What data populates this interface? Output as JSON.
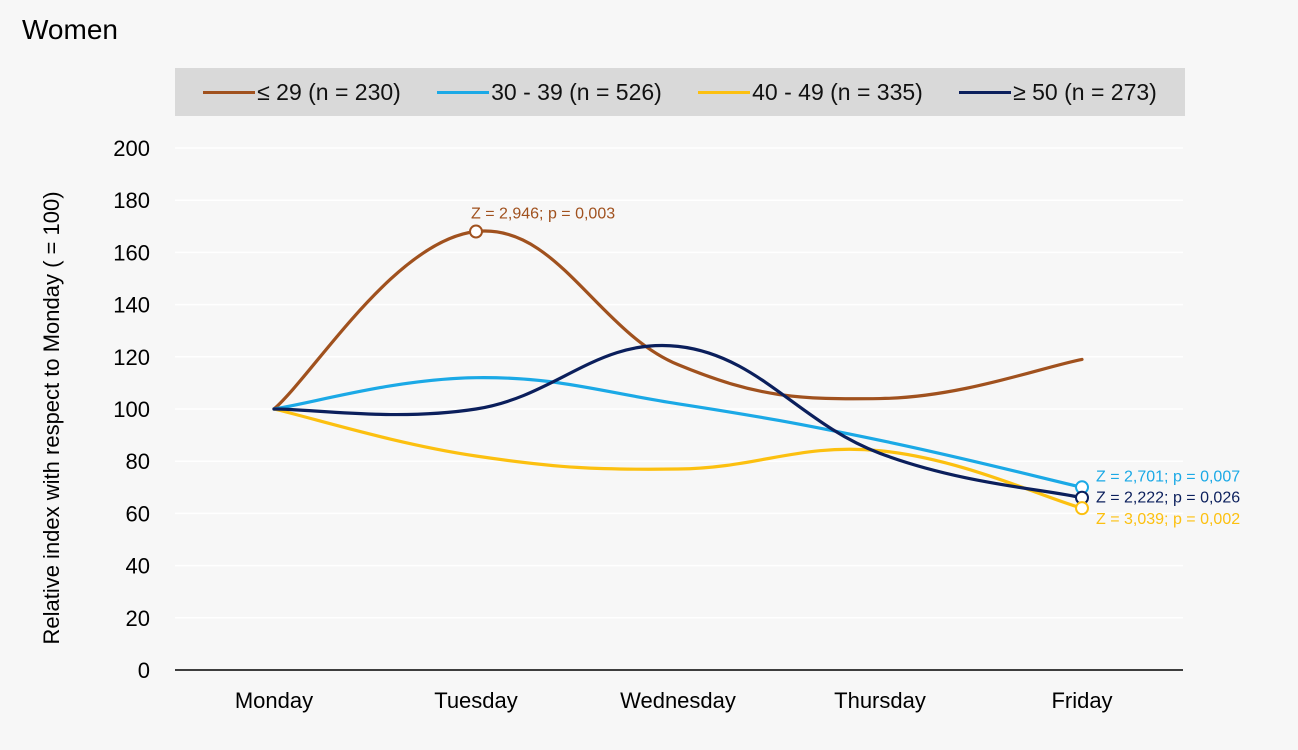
{
  "chart_data": {
    "type": "line",
    "title": "Women",
    "ylabel": "Relative index with respect to Monday ( = 100)",
    "xlabel": "",
    "categories": [
      "Monday",
      "Tuesday",
      "Wednesday",
      "Thursday",
      "Friday"
    ],
    "ylim": [
      0,
      200
    ],
    "yticks": [
      0,
      20,
      40,
      60,
      80,
      100,
      120,
      140,
      160,
      180,
      200
    ],
    "grid": true,
    "legend_position": "top",
    "series": [
      {
        "name": "≤ 29 (n = 230)",
        "color": "#a0511e",
        "values": [
          100,
          168,
          117,
          104,
          119
        ]
      },
      {
        "name": "30 - 39 (n = 526)",
        "color": "#1ba9e6",
        "values": [
          100,
          112,
          102,
          88,
          70
        ]
      },
      {
        "name": "40 - 49 (n = 335)",
        "color": "#fcc010",
        "values": [
          100,
          82,
          77,
          84,
          62
        ]
      },
      {
        "name": "≥ 50 (n = 273)",
        "color": "#0b1f5c",
        "values": [
          100,
          100,
          124,
          83,
          66
        ]
      }
    ],
    "annotations": [
      {
        "text": "Z = 2,946; p = 0,003",
        "series": 0,
        "point": 1,
        "color": "#a0511e"
      },
      {
        "text": "Z = 2,701; p = 0,007",
        "series": 1,
        "point": 4,
        "color": "#1ba9e6"
      },
      {
        "text": "Z =  2,222; p = 0,026",
        "series": 3,
        "point": 4,
        "color": "#0b1f5c"
      },
      {
        "text": "Z =  3,039; p = 0,002",
        "series": 2,
        "point": 4,
        "color": "#fcc010"
      }
    ]
  }
}
